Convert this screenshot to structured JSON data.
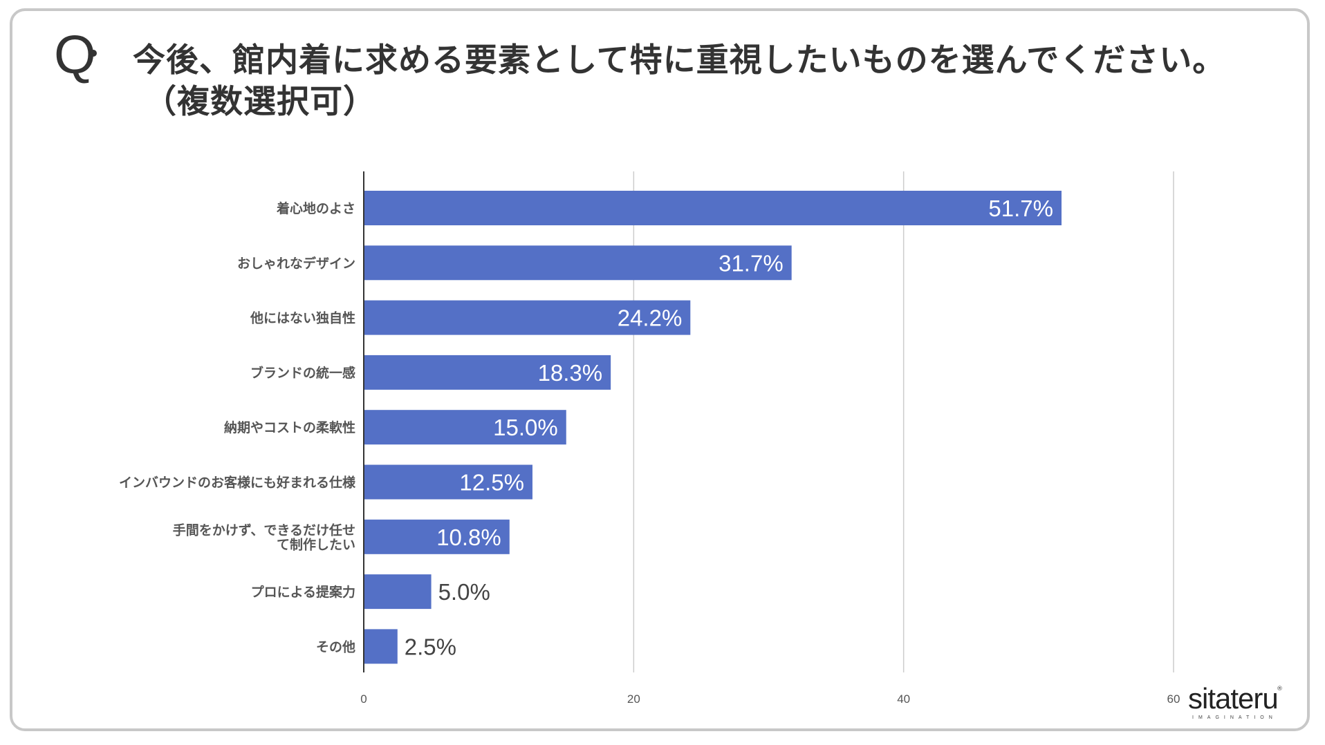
{
  "question": {
    "mark": "Q",
    "line1": "今後、館内着に求める要素として特に重視したいものを選んでください。",
    "line2": "（複数選択可）"
  },
  "chart_data": {
    "type": "bar",
    "orientation": "horizontal",
    "categories": [
      "着心地のよさ",
      "おしゃれなデザイン",
      "他にはない独自性",
      "ブランドの統一感",
      "納期やコストの柔軟性",
      "インバウンドのお客様にも好まれる仕様",
      [
        "手間をかけず、できるだけ任せ",
        "て制作したい"
      ],
      "プロによる提案力",
      "その他"
    ],
    "values": [
      51.7,
      31.7,
      24.2,
      18.3,
      15.0,
      12.5,
      10.8,
      5.0,
      2.5
    ],
    "value_labels": [
      "51.7%",
      "31.7%",
      "24.2%",
      "18.3%",
      "15.0%",
      "12.5%",
      "10.8%",
      "5.0%",
      "2.5%"
    ],
    "xlim": [
      0,
      60
    ],
    "xticks": [
      0,
      20,
      40,
      60
    ],
    "grid": true,
    "bar_color": "#5470c6",
    "axis_color": "#333333",
    "grid_color": "#cccccc",
    "label_color": "#555555"
  },
  "logo": {
    "text": "sitateru",
    "sub": "IMAGINATION",
    "reg": "®"
  }
}
